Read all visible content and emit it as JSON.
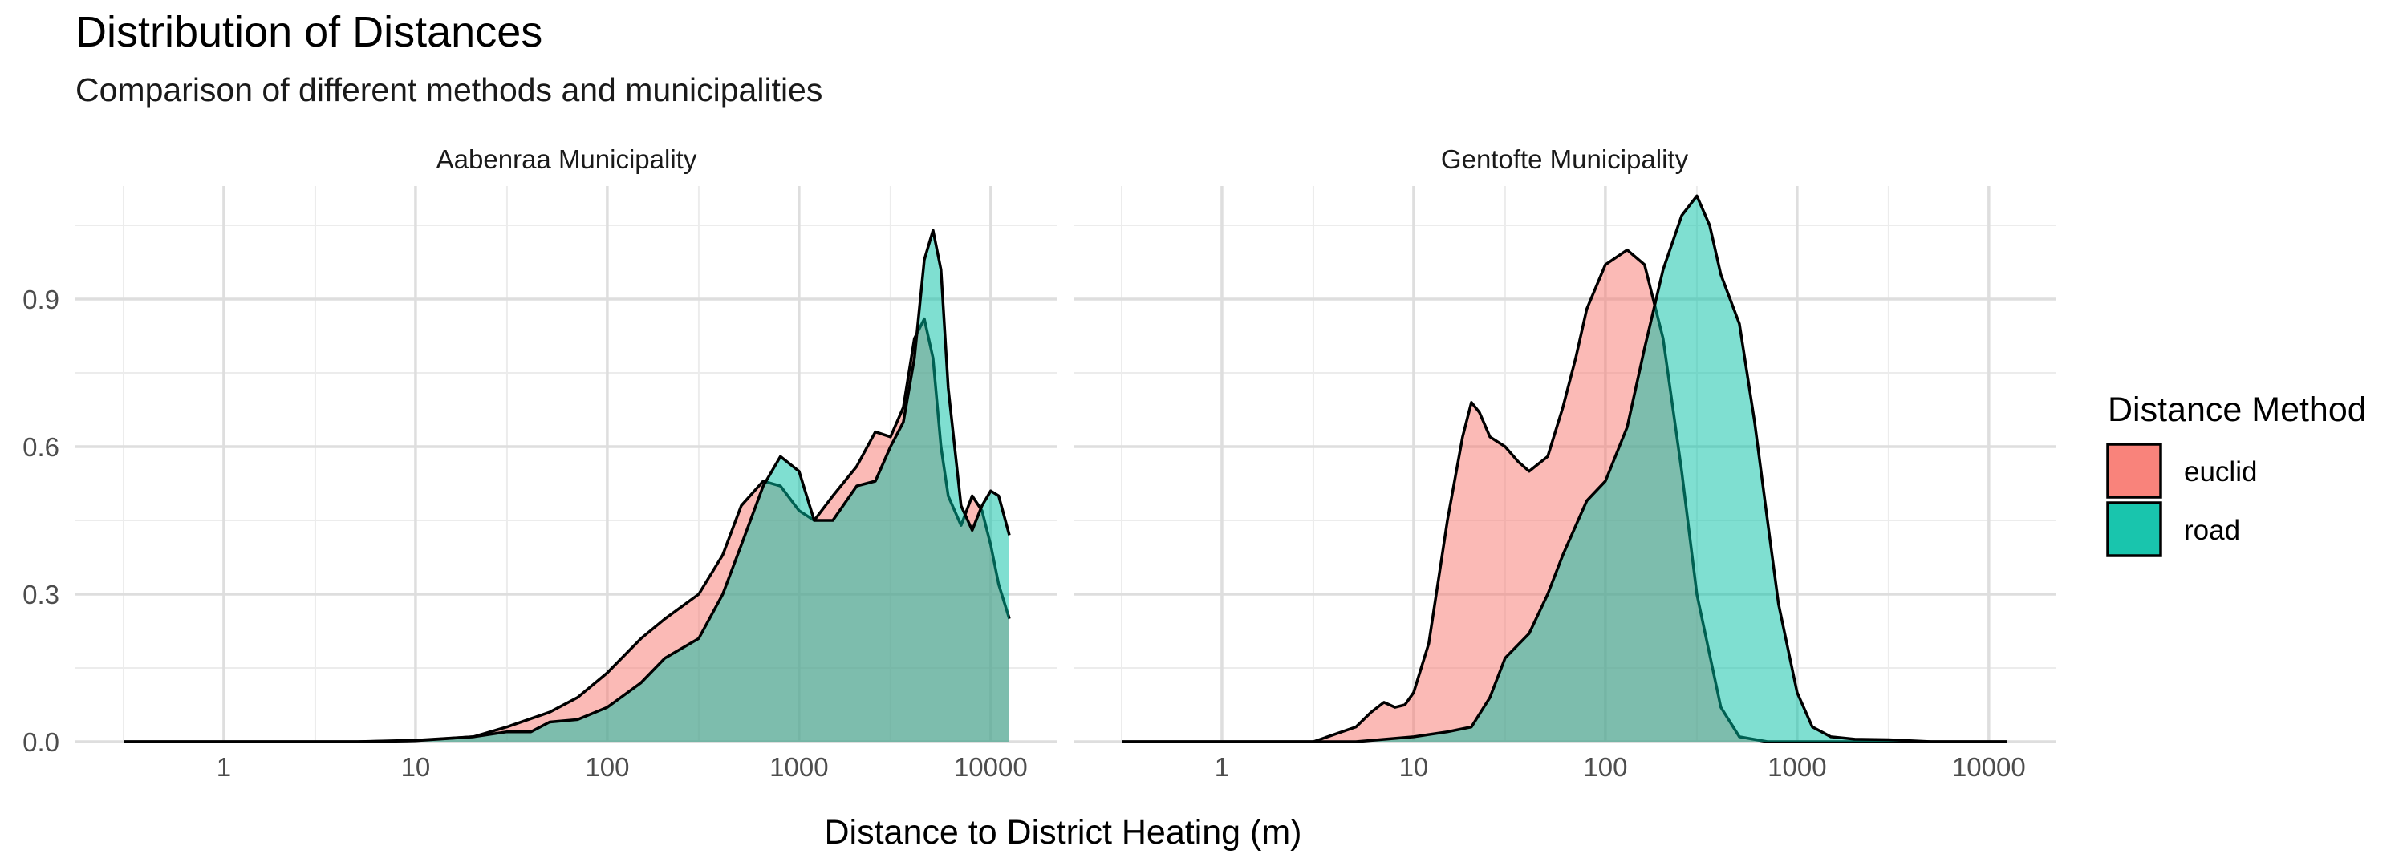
{
  "chart_data": {
    "type": "area",
    "chart_kind": "faceted density plot",
    "title": "Distribution of Distances",
    "subtitle": "Comparison of different methods and municipalities",
    "xlabel": "Distance to District Heating (m)",
    "ylabel": "",
    "x_scale": "log10",
    "xlim": [
      0.3,
      12500
    ],
    "ylim": [
      0,
      1.13
    ],
    "x_ticks": [
      1,
      10,
      100,
      1000,
      10000
    ],
    "x_tick_labels": [
      "1",
      "10",
      "100",
      "1000",
      "10000"
    ],
    "y_ticks": [
      0,
      0.3,
      0.6,
      0.9
    ],
    "y_tick_labels": [
      "0.0",
      "0.3",
      "0.6",
      "0.9"
    ],
    "grid": true,
    "legend": {
      "title": "Distance Method",
      "placement": "right",
      "entries": [
        {
          "label": "euclid",
          "color": "#F8766D"
        },
        {
          "label": "road",
          "color": "#00BFA4"
        }
      ]
    },
    "fill_opacity": 0.5,
    "outline_color": "#000000",
    "facets": [
      {
        "label": "Aabenraa Municipality",
        "series": [
          {
            "name": "euclid",
            "x": [
              0.3,
              1,
              5,
              10,
              20,
              30,
              50,
              70,
              100,
              150,
              200,
              300,
              400,
              500,
              650,
              800,
              1000,
              1200,
              1500,
              2000,
              2500,
              3000,
              3500,
              4000,
              4500,
              5000,
              5500,
              6000,
              7000,
              8000,
              9000,
              10000,
              11000,
              12500
            ],
            "y": [
              0,
              0,
              0,
              0.003,
              0.01,
              0.03,
              0.06,
              0.09,
              0.14,
              0.21,
              0.25,
              0.3,
              0.38,
              0.48,
              0.53,
              0.52,
              0.47,
              0.45,
              0.5,
              0.56,
              0.63,
              0.62,
              0.68,
              0.82,
              0.86,
              0.78,
              0.6,
              0.5,
              0.44,
              0.5,
              0.47,
              0.4,
              0.32,
              0.25
            ]
          },
          {
            "name": "road",
            "x": [
              0.3,
              1,
              5,
              10,
              20,
              30,
              40,
              50,
              70,
              100,
              150,
              200,
              300,
              400,
              500,
              650,
              800,
              1000,
              1200,
              1500,
              2000,
              2500,
              3000,
              3500,
              4000,
              4500,
              5000,
              5500,
              6000,
              7000,
              8000,
              9000,
              10000,
              11000,
              12500
            ],
            "y": [
              0,
              0,
              0,
              0.002,
              0.01,
              0.02,
              0.02,
              0.04,
              0.045,
              0.07,
              0.12,
              0.17,
              0.21,
              0.3,
              0.4,
              0.52,
              0.58,
              0.55,
              0.45,
              0.45,
              0.52,
              0.53,
              0.6,
              0.65,
              0.78,
              0.98,
              1.04,
              0.96,
              0.72,
              0.48,
              0.43,
              0.48,
              0.51,
              0.5,
              0.42
            ]
          }
        ]
      },
      {
        "label": "Gentofte Municipality",
        "series": [
          {
            "name": "euclid",
            "x": [
              0.3,
              1,
              3,
              5,
              6,
              7,
              8,
              9,
              10,
              12,
              15,
              18,
              20,
              22,
              25,
              30,
              35,
              40,
              50,
              60,
              70,
              80,
              100,
              130,
              160,
              200,
              250,
              300,
              400,
              500,
              700,
              1000,
              1500,
              2000,
              3000,
              5000,
              12500
            ],
            "y": [
              0,
              0,
              0,
              0.03,
              0.06,
              0.08,
              0.07,
              0.075,
              0.1,
              0.2,
              0.45,
              0.62,
              0.69,
              0.67,
              0.62,
              0.6,
              0.57,
              0.55,
              0.58,
              0.68,
              0.78,
              0.88,
              0.97,
              1.0,
              0.97,
              0.82,
              0.55,
              0.3,
              0.07,
              0.01,
              0,
              0,
              0,
              0,
              0,
              0,
              0
            ]
          },
          {
            "name": "road",
            "x": [
              0.3,
              1,
              5,
              10,
              15,
              20,
              25,
              30,
              40,
              50,
              60,
              80,
              100,
              130,
              160,
              200,
              250,
              300,
              350,
              400,
              500,
              600,
              700,
              800,
              1000,
              1200,
              1500,
              2000,
              3000,
              5000,
              12500
            ],
            "y": [
              0,
              0,
              0,
              0.01,
              0.02,
              0.03,
              0.09,
              0.17,
              0.22,
              0.3,
              0.38,
              0.49,
              0.53,
              0.64,
              0.8,
              0.96,
              1.07,
              1.11,
              1.05,
              0.95,
              0.85,
              0.65,
              0.45,
              0.28,
              0.1,
              0.03,
              0.01,
              0.005,
              0.004,
              0,
              0
            ]
          }
        ]
      }
    ]
  }
}
